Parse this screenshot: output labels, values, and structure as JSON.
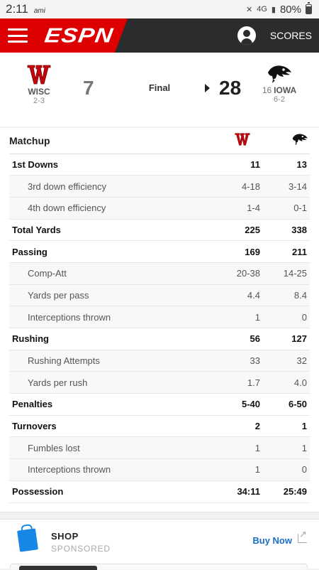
{
  "status_bar": {
    "time": "2:11",
    "carrier": "ami",
    "network": "4G",
    "battery": "80%",
    "battery_level": 0.8
  },
  "header": {
    "logo": "ESPN",
    "scores_label": "SCORES"
  },
  "game": {
    "status": "Final",
    "away": {
      "abbr": "WISC",
      "record": "2-3",
      "score": "7",
      "logo": "wisconsin-w-logo"
    },
    "home": {
      "abbr": "IOWA",
      "rank": "16",
      "record": "6-2",
      "score": "28",
      "logo": "iowa-hawkeye-logo"
    }
  },
  "matchup": {
    "title": "Matchup",
    "rows": [
      {
        "label": "1st Downs",
        "away": "11",
        "home": "13",
        "type": "main"
      },
      {
        "label": "3rd down efficiency",
        "away": "4-18",
        "home": "3-14",
        "type": "sub"
      },
      {
        "label": "4th down efficiency",
        "away": "1-4",
        "home": "0-1",
        "type": "sub"
      },
      {
        "label": "Total Yards",
        "away": "225",
        "home": "338",
        "type": "main"
      },
      {
        "label": "Passing",
        "away": "169",
        "home": "211",
        "type": "main"
      },
      {
        "label": "Comp-Att",
        "away": "20-38",
        "home": "14-25",
        "type": "sub"
      },
      {
        "label": "Yards per pass",
        "away": "4.4",
        "home": "8.4",
        "type": "sub"
      },
      {
        "label": "Interceptions thrown",
        "away": "1",
        "home": "0",
        "type": "sub"
      },
      {
        "label": "Rushing",
        "away": "56",
        "home": "127",
        "type": "main"
      },
      {
        "label": "Rushing Attempts",
        "away": "33",
        "home": "32",
        "type": "sub"
      },
      {
        "label": "Yards per rush",
        "away": "1.7",
        "home": "4.0",
        "type": "sub"
      },
      {
        "label": "Penalties",
        "away": "5-40",
        "home": "6-50",
        "type": "main"
      },
      {
        "label": "Turnovers",
        "away": "2",
        "home": "1",
        "type": "main"
      },
      {
        "label": "Fumbles lost",
        "away": "1",
        "home": "1",
        "type": "sub"
      },
      {
        "label": "Interceptions thrown",
        "away": "1",
        "home": "0",
        "type": "sub"
      },
      {
        "label": "Possession",
        "away": "34:11",
        "home": "25:49",
        "type": "main"
      }
    ]
  },
  "shop": {
    "title": "SHOP",
    "subtitle": "SPONSORED",
    "cta": "Buy Now"
  },
  "colors": {
    "espn_red": "#dd0000",
    "header_dark": "#2b2c2d",
    "wisconsin_red": "#c5050c",
    "link_blue": "#1a6ec7"
  }
}
